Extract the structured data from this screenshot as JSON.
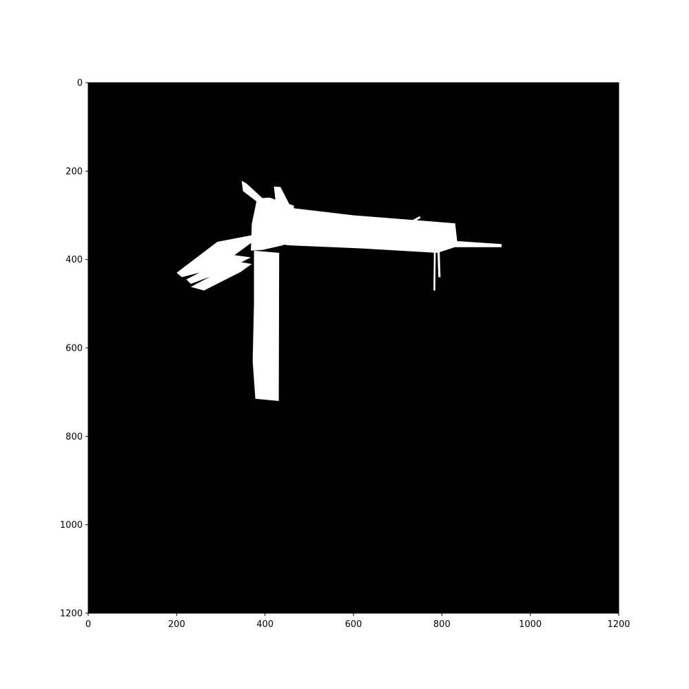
{
  "chart_data": {
    "type": "heatmap",
    "title": "",
    "xlabel": "",
    "ylabel": "",
    "xlim": [
      0,
      1200
    ],
    "ylim": [
      1200,
      0
    ],
    "y_inverted": true,
    "grid": false,
    "colors": {
      "background": "#000000",
      "mask": "#ffffff"
    },
    "x_ticks": [
      {
        "value": 0,
        "label": "0"
      },
      {
        "value": 200,
        "label": "200"
      },
      {
        "value": 400,
        "label": "400"
      },
      {
        "value": 600,
        "label": "600"
      },
      {
        "value": 800,
        "label": "800"
      },
      {
        "value": 1000,
        "label": "1000"
      },
      {
        "value": 1200,
        "label": "1200"
      }
    ],
    "y_ticks": [
      {
        "value": 0,
        "label": "0"
      },
      {
        "value": 200,
        "label": "200"
      },
      {
        "value": 400,
        "label": "400"
      },
      {
        "value": 600,
        "label": "600"
      },
      {
        "value": 800,
        "label": "800"
      },
      {
        "value": 1000,
        "label": "1000"
      },
      {
        "value": 1200,
        "label": "1200"
      }
    ],
    "mask_regions": [
      {
        "name": "main-horizontal-arm",
        "points": [
          [
            390,
            275
          ],
          [
            600,
            300
          ],
          [
            830,
            318
          ],
          [
            836,
            370
          ],
          [
            790,
            385
          ],
          [
            620,
            375
          ],
          [
            455,
            368
          ],
          [
            395,
            360
          ]
        ]
      },
      {
        "name": "central-block",
        "points": [
          [
            382,
            262
          ],
          [
            410,
            260
          ],
          [
            465,
            278
          ],
          [
            470,
            350
          ],
          [
            440,
            368
          ],
          [
            395,
            378
          ],
          [
            368,
            380
          ],
          [
            370,
            320
          ]
        ]
      },
      {
        "name": "top-notch",
        "points": [
          [
            420,
            235
          ],
          [
            435,
            236
          ],
          [
            455,
            275
          ],
          [
            425,
            278
          ]
        ]
      },
      {
        "name": "upper-left-spike",
        "points": [
          [
            347,
            222
          ],
          [
            358,
            228
          ],
          [
            395,
            262
          ],
          [
            380,
            268
          ],
          [
            350,
            245
          ]
        ]
      },
      {
        "name": "vertical-arm",
        "points": [
          [
            375,
            380
          ],
          [
            432,
            385
          ],
          [
            431,
            720
          ],
          [
            378,
            715
          ],
          [
            372,
            630
          ],
          [
            375,
            500
          ]
        ]
      },
      {
        "name": "lower-left-spike-a",
        "points": [
          [
            200,
            430
          ],
          [
            292,
            360
          ],
          [
            370,
            345
          ],
          [
            372,
            360
          ],
          [
            290,
            420
          ],
          [
            212,
            440
          ]
        ]
      },
      {
        "name": "lower-left-spike-b",
        "points": [
          [
            222,
            445
          ],
          [
            330,
            390
          ],
          [
            368,
            395
          ],
          [
            300,
            430
          ],
          [
            232,
            455
          ]
        ]
      },
      {
        "name": "lower-left-spike-c",
        "points": [
          [
            232,
            462
          ],
          [
            340,
            405
          ],
          [
            370,
            410
          ],
          [
            345,
            428
          ],
          [
            262,
            470
          ]
        ]
      },
      {
        "name": "right-tip",
        "points": [
          [
            830,
            358
          ],
          [
            935,
            365
          ],
          [
            935,
            372
          ],
          [
            830,
            372
          ]
        ]
      },
      {
        "name": "right-thin-line-a",
        "points": [
          [
            782,
            375
          ],
          [
            786,
            375
          ],
          [
            785,
            470
          ],
          [
            781,
            470
          ]
        ]
      },
      {
        "name": "right-thin-line-b",
        "points": [
          [
            790,
            380
          ],
          [
            795,
            380
          ],
          [
            797,
            440
          ],
          [
            792,
            440
          ]
        ]
      },
      {
        "name": "small-fleck",
        "points": [
          [
            735,
            310
          ],
          [
            750,
            302
          ],
          [
            752,
            306
          ],
          [
            738,
            314
          ]
        ]
      }
    ]
  }
}
